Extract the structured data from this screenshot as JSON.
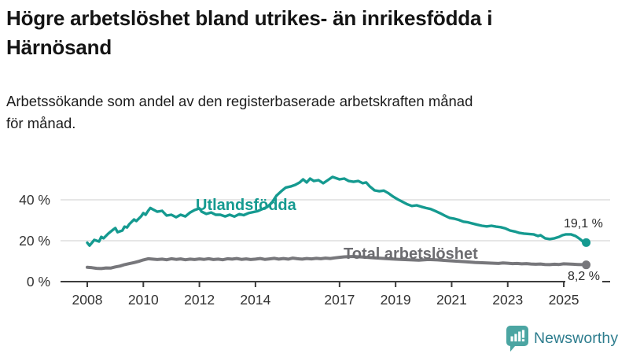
{
  "header": {
    "title_lines": [
      "Högre arbetslöshet bland utrikes- än inrikesfödda i",
      "Härnösand"
    ],
    "subtitle_lines": [
      "Arbetssökande som andel av den registerbaserade arbetskraften månad",
      "för månad."
    ]
  },
  "chart_data": {
    "type": "line",
    "unit": "%",
    "grid": true,
    "x_axis": {
      "range": [
        2007.9,
        2026.6
      ],
      "ticks": [
        2008,
        2010,
        2012,
        2014,
        2017,
        2019,
        2021,
        2023,
        2025
      ],
      "tick_labels": [
        "2008",
        "2010",
        "2012",
        "2014",
        "2017",
        "2019",
        "2021",
        "2023",
        "2025"
      ]
    },
    "y_axis": {
      "range": [
        0,
        57
      ],
      "ticks": [
        0,
        20,
        40
      ],
      "tick_labels": [
        "0 %",
        "20 %",
        "40 %"
      ]
    },
    "series": [
      {
        "name": "Utlandsfödda",
        "color": "#159a90",
        "end_value": 19.1,
        "end_label": "19,1 %",
        "points": [
          [
            2008.0,
            19.0
          ],
          [
            2008.08,
            17.6
          ],
          [
            2008.25,
            20.4
          ],
          [
            2008.42,
            19.6
          ],
          [
            2008.5,
            21.9
          ],
          [
            2008.58,
            21.2
          ],
          [
            2008.75,
            23.5
          ],
          [
            2008.92,
            25.4
          ],
          [
            2009.0,
            26.2
          ],
          [
            2009.08,
            24.2
          ],
          [
            2009.25,
            25.0
          ],
          [
            2009.33,
            26.9
          ],
          [
            2009.42,
            26.5
          ],
          [
            2009.5,
            28.1
          ],
          [
            2009.67,
            30.4
          ],
          [
            2009.75,
            29.6
          ],
          [
            2009.92,
            31.9
          ],
          [
            2010.0,
            33.5
          ],
          [
            2010.08,
            32.7
          ],
          [
            2010.17,
            34.6
          ],
          [
            2010.25,
            36.0
          ],
          [
            2010.33,
            35.4
          ],
          [
            2010.5,
            34.2
          ],
          [
            2010.67,
            34.6
          ],
          [
            2010.83,
            32.3
          ],
          [
            2011.0,
            32.7
          ],
          [
            2011.17,
            31.5
          ],
          [
            2011.33,
            32.7
          ],
          [
            2011.5,
            31.9
          ],
          [
            2011.67,
            33.8
          ],
          [
            2011.83,
            35.0
          ],
          [
            2012.0,
            35.8
          ],
          [
            2012.08,
            34.2
          ],
          [
            2012.25,
            33.1
          ],
          [
            2012.42,
            33.8
          ],
          [
            2012.58,
            32.7
          ],
          [
            2012.75,
            32.7
          ],
          [
            2012.92,
            31.9
          ],
          [
            2013.08,
            32.7
          ],
          [
            2013.25,
            31.8
          ],
          [
            2013.42,
            33.0
          ],
          [
            2013.58,
            32.5
          ],
          [
            2013.75,
            33.5
          ],
          [
            2013.92,
            34.0
          ],
          [
            2014.08,
            34.5
          ],
          [
            2014.25,
            35.5
          ],
          [
            2014.42,
            36.5
          ],
          [
            2014.58,
            38.5
          ],
          [
            2014.75,
            42.0
          ],
          [
            2014.92,
            44.2
          ],
          [
            2015.08,
            46.0
          ],
          [
            2015.25,
            46.5
          ],
          [
            2015.42,
            47.3
          ],
          [
            2015.58,
            48.5
          ],
          [
            2015.7,
            50.0
          ],
          [
            2015.83,
            48.5
          ],
          [
            2015.95,
            50.4
          ],
          [
            2016.08,
            49.2
          ],
          [
            2016.25,
            49.6
          ],
          [
            2016.42,
            48.1
          ],
          [
            2016.58,
            49.6
          ],
          [
            2016.75,
            51.2
          ],
          [
            2016.92,
            50.4
          ],
          [
            2017.0,
            50.0
          ],
          [
            2017.17,
            50.4
          ],
          [
            2017.33,
            49.2
          ],
          [
            2017.5,
            48.8
          ],
          [
            2017.67,
            49.2
          ],
          [
            2017.83,
            48.1
          ],
          [
            2017.95,
            48.5
          ],
          [
            2018.08,
            46.5
          ],
          [
            2018.25,
            44.6
          ],
          [
            2018.42,
            44.2
          ],
          [
            2018.58,
            44.5
          ],
          [
            2018.75,
            43.2
          ],
          [
            2018.92,
            41.5
          ],
          [
            2019.08,
            40.2
          ],
          [
            2019.25,
            39.0
          ],
          [
            2019.42,
            37.8
          ],
          [
            2019.58,
            37.0
          ],
          [
            2019.75,
            37.3
          ],
          [
            2019.92,
            36.6
          ],
          [
            2020.08,
            36.0
          ],
          [
            2020.25,
            35.5
          ],
          [
            2020.42,
            34.5
          ],
          [
            2020.58,
            33.5
          ],
          [
            2020.75,
            32.3
          ],
          [
            2020.92,
            31.2
          ],
          [
            2021.08,
            30.8
          ],
          [
            2021.25,
            30.2
          ],
          [
            2021.42,
            29.3
          ],
          [
            2021.58,
            29.0
          ],
          [
            2021.75,
            28.4
          ],
          [
            2021.92,
            27.8
          ],
          [
            2022.08,
            27.3
          ],
          [
            2022.25,
            27.0
          ],
          [
            2022.42,
            27.3
          ],
          [
            2022.58,
            26.9
          ],
          [
            2022.75,
            26.6
          ],
          [
            2022.92,
            26.0
          ],
          [
            2023.08,
            25.0
          ],
          [
            2023.25,
            24.5
          ],
          [
            2023.42,
            23.8
          ],
          [
            2023.58,
            23.5
          ],
          [
            2023.75,
            23.3
          ],
          [
            2023.92,
            23.1
          ],
          [
            2024.08,
            22.3
          ],
          [
            2024.17,
            22.7
          ],
          [
            2024.33,
            21.2
          ],
          [
            2024.5,
            20.8
          ],
          [
            2024.67,
            21.2
          ],
          [
            2024.83,
            21.9
          ],
          [
            2024.95,
            22.7
          ],
          [
            2025.08,
            23.1
          ],
          [
            2025.25,
            23.1
          ],
          [
            2025.42,
            22.3
          ],
          [
            2025.58,
            20.8
          ],
          [
            2025.7,
            19.4
          ],
          [
            2025.8,
            19.1
          ]
        ]
      },
      {
        "name": "Total arbetslöshet",
        "color": "#77777b",
        "end_value": 8.2,
        "end_label": "8,2 %",
        "points": [
          [
            2008.0,
            7.0
          ],
          [
            2008.17,
            6.8
          ],
          [
            2008.33,
            6.5
          ],
          [
            2008.5,
            6.4
          ],
          [
            2008.67,
            6.7
          ],
          [
            2008.83,
            6.6
          ],
          [
            2009.0,
            7.2
          ],
          [
            2009.17,
            7.6
          ],
          [
            2009.33,
            8.3
          ],
          [
            2009.5,
            8.8
          ],
          [
            2009.67,
            9.3
          ],
          [
            2009.83,
            9.9
          ],
          [
            2010.0,
            10.6
          ],
          [
            2010.17,
            11.2
          ],
          [
            2010.33,
            11.0
          ],
          [
            2010.5,
            10.8
          ],
          [
            2010.67,
            11.0
          ],
          [
            2010.83,
            10.7
          ],
          [
            2011.0,
            11.2
          ],
          [
            2011.17,
            10.9
          ],
          [
            2011.33,
            11.1
          ],
          [
            2011.5,
            10.7
          ],
          [
            2011.67,
            11.0
          ],
          [
            2011.83,
            10.8
          ],
          [
            2012.0,
            11.1
          ],
          [
            2012.17,
            10.9
          ],
          [
            2012.33,
            11.2
          ],
          [
            2012.5,
            10.8
          ],
          [
            2012.67,
            11.0
          ],
          [
            2012.83,
            10.7
          ],
          [
            2013.0,
            11.2
          ],
          [
            2013.17,
            11.0
          ],
          [
            2013.33,
            11.3
          ],
          [
            2013.5,
            10.9
          ],
          [
            2013.67,
            11.1
          ],
          [
            2013.83,
            10.8
          ],
          [
            2014.0,
            11.0
          ],
          [
            2014.17,
            11.3
          ],
          [
            2014.33,
            10.9
          ],
          [
            2014.5,
            11.1
          ],
          [
            2014.67,
            11.4
          ],
          [
            2014.83,
            11.0
          ],
          [
            2015.0,
            11.3
          ],
          [
            2015.17,
            11.0
          ],
          [
            2015.33,
            11.5
          ],
          [
            2015.5,
            11.2
          ],
          [
            2015.67,
            11.0
          ],
          [
            2015.83,
            11.3
          ],
          [
            2016.0,
            11.1
          ],
          [
            2016.17,
            11.4
          ],
          [
            2016.33,
            11.2
          ],
          [
            2016.5,
            11.5
          ],
          [
            2016.67,
            11.3
          ],
          [
            2016.83,
            11.6
          ],
          [
            2017.0,
            11.9
          ],
          [
            2017.17,
            12.1
          ],
          [
            2017.5,
            12.3
          ],
          [
            2017.83,
            12.0
          ],
          [
            2018.17,
            11.7
          ],
          [
            2018.5,
            11.4
          ],
          [
            2018.83,
            11.1
          ],
          [
            2019.17,
            10.9
          ],
          [
            2019.5,
            10.7
          ],
          [
            2019.83,
            10.5
          ],
          [
            2020.17,
            10.8
          ],
          [
            2020.5,
            10.6
          ],
          [
            2020.83,
            10.3
          ],
          [
            2021.17,
            10.0
          ],
          [
            2021.5,
            9.7
          ],
          [
            2021.83,
            9.4
          ],
          [
            2022.17,
            9.2
          ],
          [
            2022.5,
            9.0
          ],
          [
            2022.67,
            8.9
          ],
          [
            2022.83,
            9.1
          ],
          [
            2023.0,
            9.0
          ],
          [
            2023.17,
            8.8
          ],
          [
            2023.33,
            8.9
          ],
          [
            2023.5,
            8.7
          ],
          [
            2023.67,
            8.8
          ],
          [
            2023.83,
            8.6
          ],
          [
            2024.0,
            8.5
          ],
          [
            2024.17,
            8.6
          ],
          [
            2024.33,
            8.4
          ],
          [
            2024.5,
            8.3
          ],
          [
            2024.67,
            8.5
          ],
          [
            2024.83,
            8.4
          ],
          [
            2025.0,
            8.7
          ],
          [
            2025.17,
            8.6
          ],
          [
            2025.33,
            8.5
          ],
          [
            2025.5,
            8.4
          ],
          [
            2025.67,
            8.3
          ],
          [
            2025.8,
            8.2
          ]
        ]
      }
    ],
    "colors": {
      "grid": "#d8d8d8",
      "axis": "#3d3d3d",
      "tick_text": "#333333"
    }
  },
  "branding": {
    "logo_text": "Newsworthy",
    "logo_text_color": "#2e7d8e",
    "logo_icon": "bar-chart-speech-bubble-icon",
    "logo_icon_color": "#4ba5a2"
  }
}
